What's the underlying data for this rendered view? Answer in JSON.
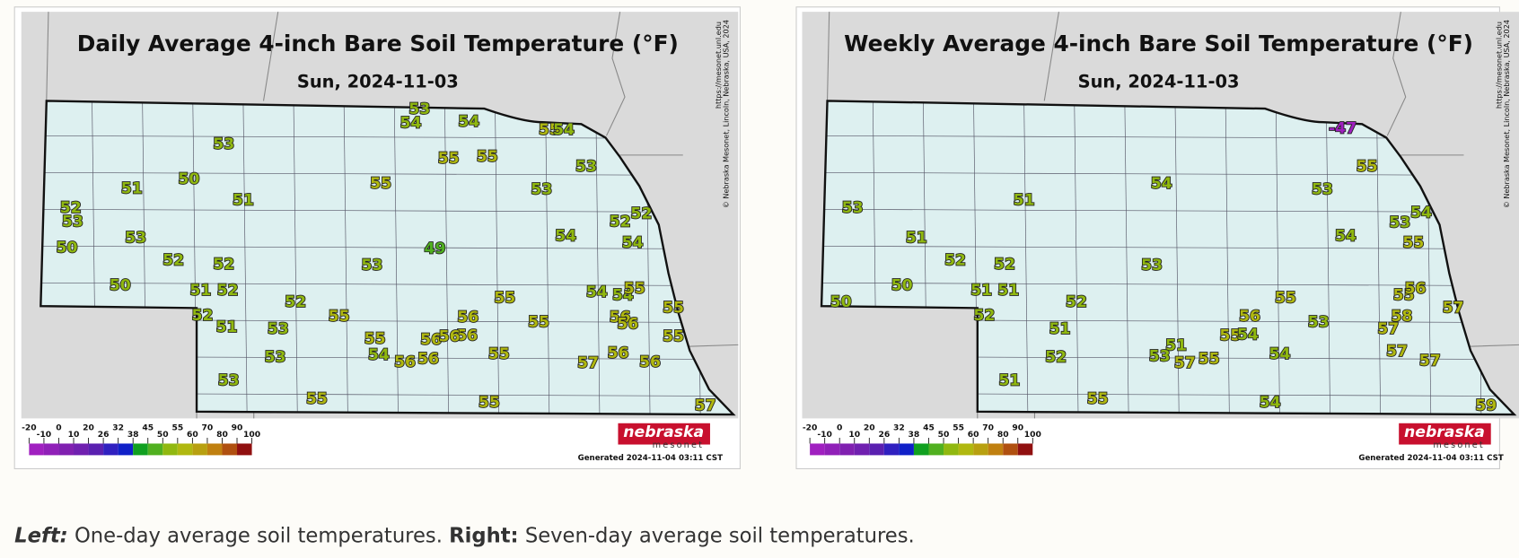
{
  "maps": [
    {
      "title": "Daily Average 4-inch Bare Soil Temperature (°F)",
      "subtitle": "Sun, 2024-11-03",
      "url": "https://mesonet.unl.edu",
      "copyright": "© Nebraska Mesonet, Lincoln, Nebraska, USA, 2024",
      "logo": "nebraska",
      "logo_sub": "mesonet",
      "generated": "Generated 2024-11-04 03:11 CST",
      "stations": [
        53,
        54,
        54,
        55,
        54,
        53,
        55,
        55,
        53,
        51,
        50,
        55,
        53,
        51,
        52,
        53,
        52,
        52,
        53,
        54,
        54,
        50,
        52,
        52,
        53,
        49,
        50,
        51,
        52,
        54,
        54,
        55,
        52,
        55,
        52,
        55,
        56,
        55,
        56,
        56,
        55,
        51,
        53,
        56,
        56,
        56,
        55,
        55,
        54,
        56,
        56,
        55,
        53,
        57,
        56,
        56,
        53,
        55,
        55,
        57
      ]
    },
    {
      "title": "Weekly Average 4-inch Bare Soil Temperature (°F)",
      "subtitle": "Sun, 2024-11-03",
      "url": "https://mesonet.unl.edu",
      "copyright": "© Nebraska Mesonet, Lincoln, Nebraska, USA, 2024",
      "logo": "nebraska",
      "logo_sub": "mesonet",
      "generated": "Generated 2024-11-04 03:11 CST",
      "stations": [
        -47,
        55,
        54,
        51,
        53,
        53,
        54,
        53,
        51,
        54,
        55,
        52,
        52,
        53,
        50,
        51,
        51,
        55,
        55,
        56,
        52,
        57,
        50,
        52,
        56,
        53,
        58,
        57,
        51,
        55,
        54,
        51,
        52,
        53,
        57,
        55,
        54,
        57,
        57,
        51,
        55,
        54,
        59
      ]
    }
  ],
  "legend": {
    "ticks": [
      -20,
      -10,
      0,
      10,
      20,
      26,
      32,
      38,
      45,
      50,
      55,
      60,
      70,
      80,
      90,
      100
    ],
    "colors": [
      "#a020c0",
      "#9020b8",
      "#8020b0",
      "#7020b0",
      "#5a20b0",
      "#3020c0",
      "#1020c8",
      "#10a020",
      "#50b020",
      "#90b810",
      "#b0b810",
      "#b8a010",
      "#c08010",
      "#b05010",
      "#901010"
    ]
  },
  "caption": {
    "left_label": "Left:",
    "left_text": "One-day average soil temperatures.",
    "right_label": "Right:",
    "right_text": "Seven-day average soil temperatures."
  }
}
